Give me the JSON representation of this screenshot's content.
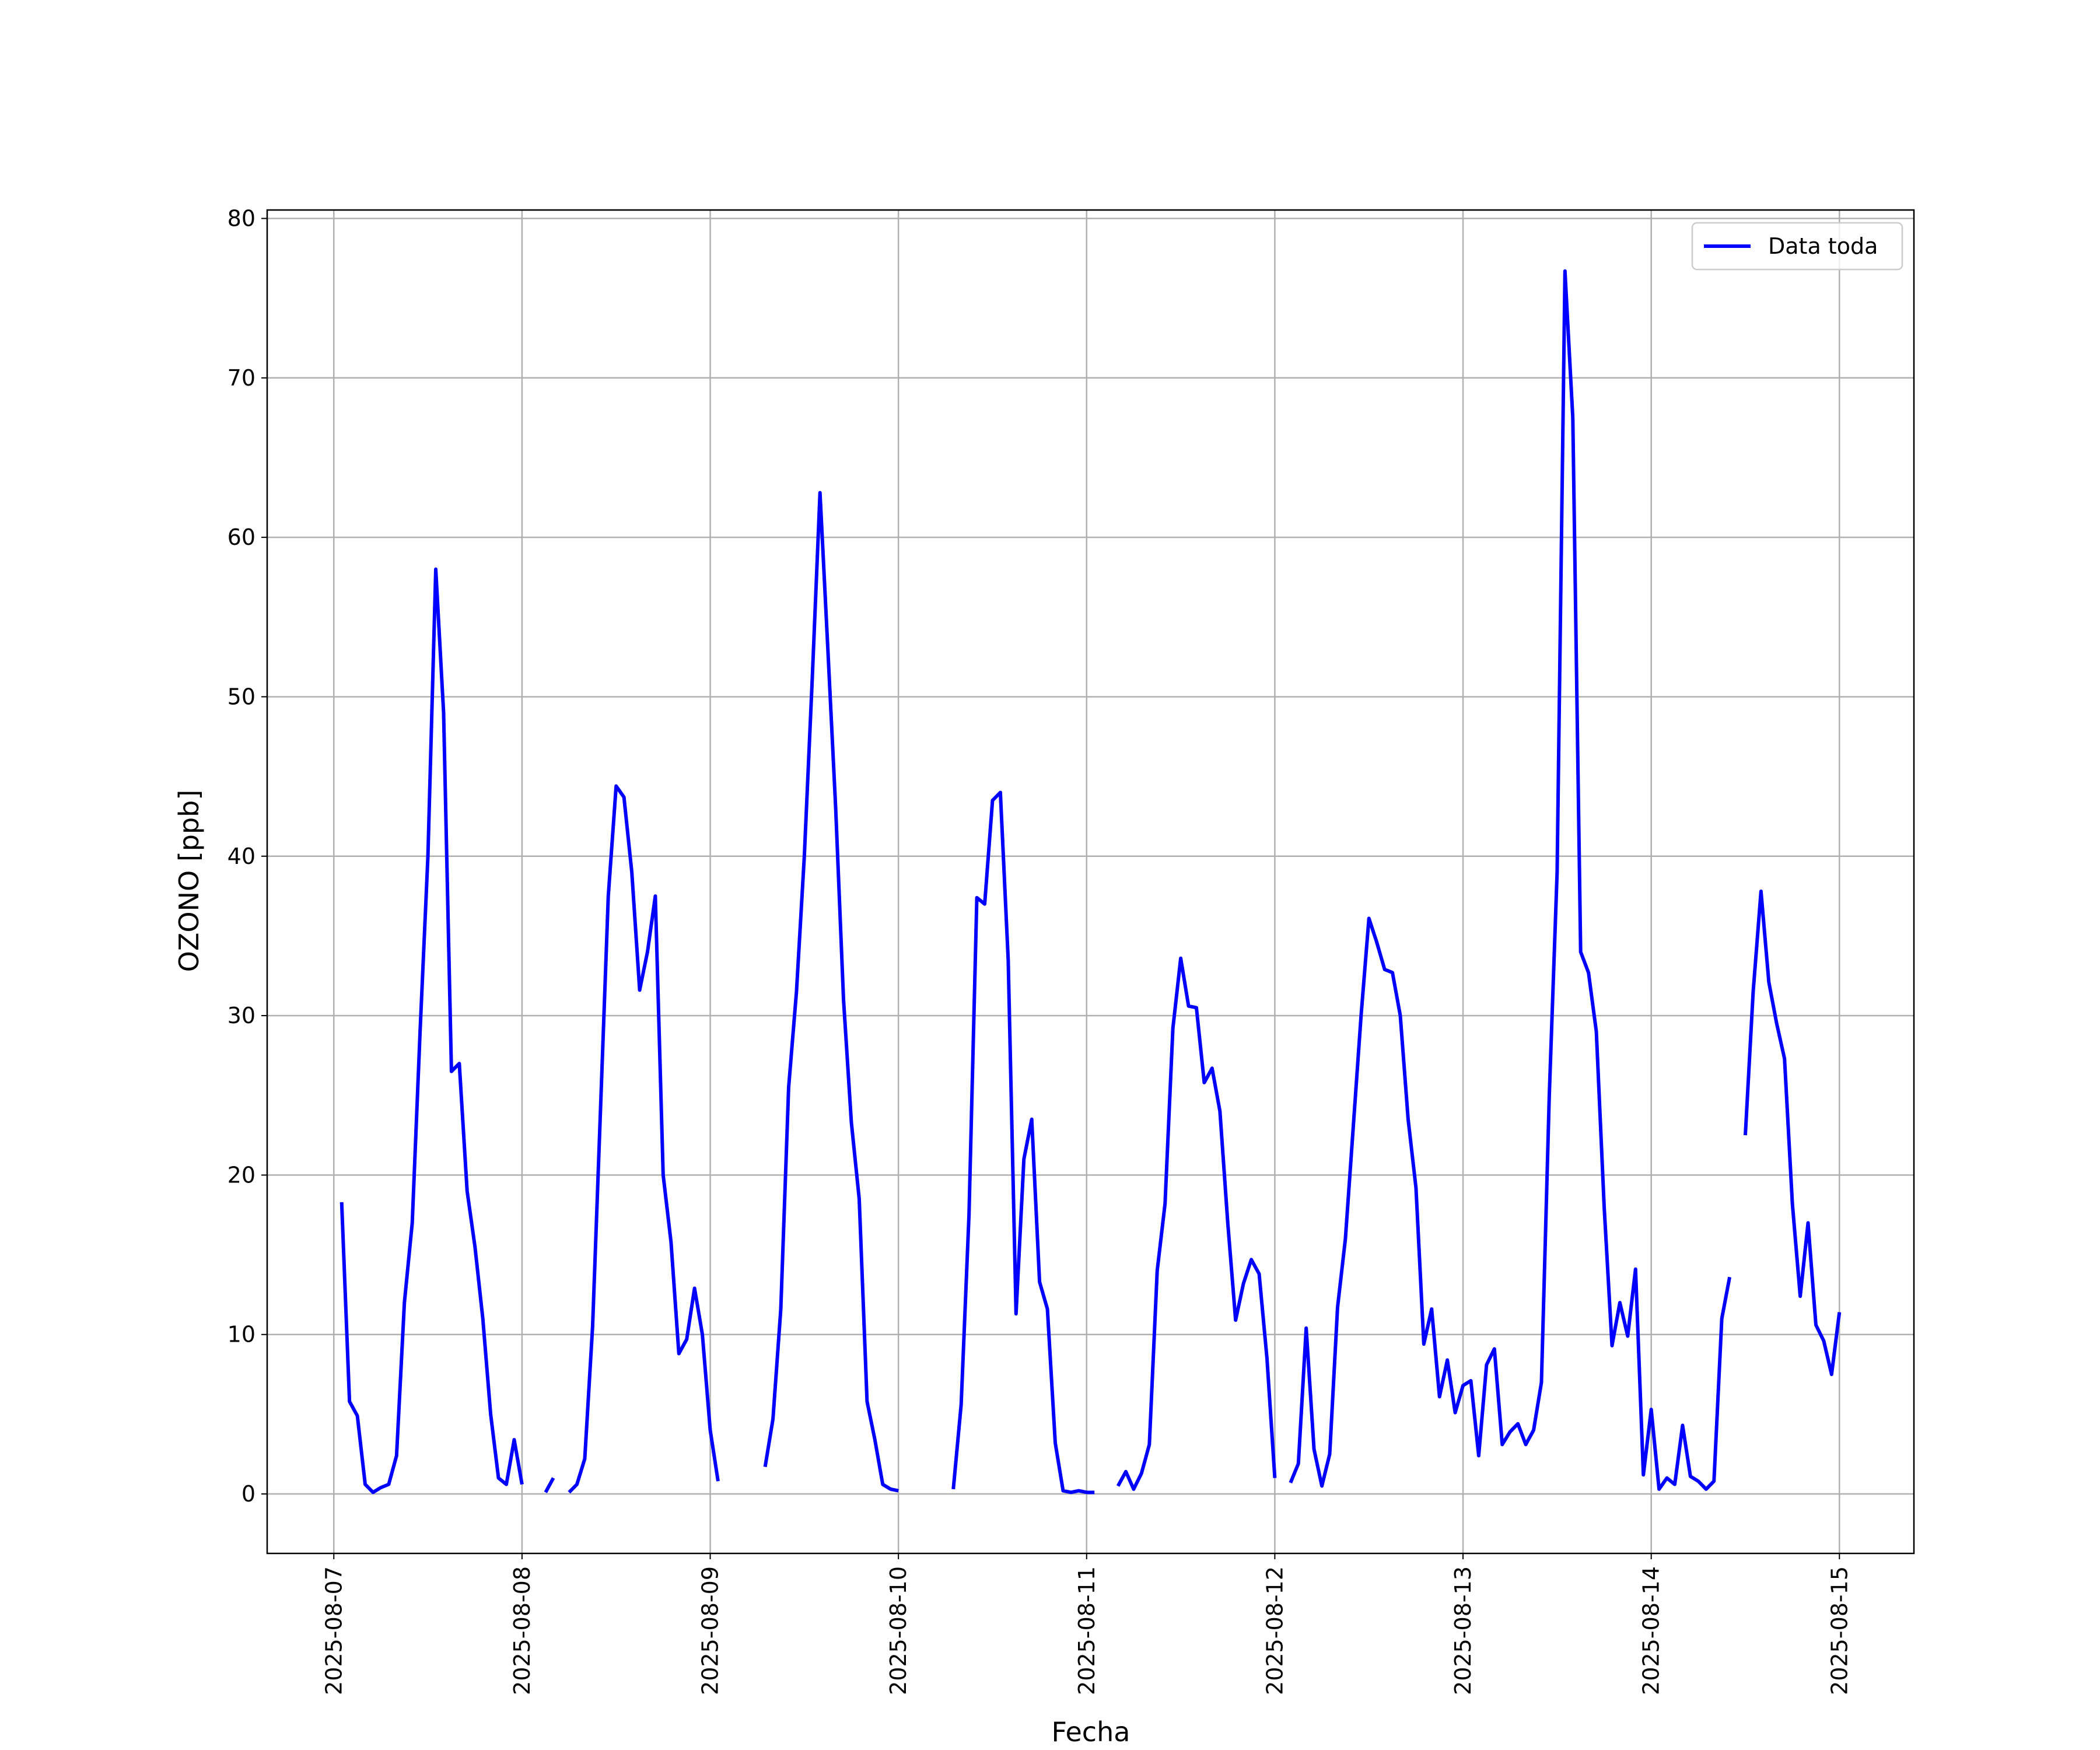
{
  "chart_data": {
    "type": "line",
    "xlabel": "Fecha",
    "ylabel": "OZONO [ppb]",
    "x": [
      "2025-08-07 01:00",
      "2025-08-07 02:00",
      "2025-08-07 03:00",
      "2025-08-07 04:00",
      "2025-08-07 05:00",
      "2025-08-07 06:00",
      "2025-08-07 07:00",
      "2025-08-07 08:00",
      "2025-08-07 09:00",
      "2025-08-07 10:00",
      "2025-08-07 11:00",
      "2025-08-07 12:00",
      "2025-08-07 13:00",
      "2025-08-07 14:00",
      "2025-08-07 15:00",
      "2025-08-07 16:00",
      "2025-08-07 17:00",
      "2025-08-07 18:00",
      "2025-08-07 19:00",
      "2025-08-07 20:00",
      "2025-08-07 21:00",
      "2025-08-07 22:00",
      "2025-08-07 23:00",
      "2025-08-08 00:00",
      "2025-08-08 01:00",
      "2025-08-08 02:00",
      "2025-08-08 03:00",
      "2025-08-08 04:00",
      "2025-08-08 05:00",
      "2025-08-08 06:00",
      "2025-08-08 07:00",
      "2025-08-08 08:00",
      "2025-08-08 09:00",
      "2025-08-08 10:00",
      "2025-08-08 11:00",
      "2025-08-08 12:00",
      "2025-08-08 13:00",
      "2025-08-08 14:00",
      "2025-08-08 15:00",
      "2025-08-08 16:00",
      "2025-08-08 17:00",
      "2025-08-08 18:00",
      "2025-08-08 19:00",
      "2025-08-08 20:00",
      "2025-08-08 21:00",
      "2025-08-08 22:00",
      "2025-08-08 23:00",
      "2025-08-09 00:00",
      "2025-08-09 01:00",
      "2025-08-09 02:00",
      "2025-08-09 03:00",
      "2025-08-09 04:00",
      "2025-08-09 05:00",
      "2025-08-09 06:00",
      "2025-08-09 07:00",
      "2025-08-09 08:00",
      "2025-08-09 09:00",
      "2025-08-09 10:00",
      "2025-08-09 11:00",
      "2025-08-09 12:00",
      "2025-08-09 13:00",
      "2025-08-09 14:00",
      "2025-08-09 15:00",
      "2025-08-09 16:00",
      "2025-08-09 17:00",
      "2025-08-09 18:00",
      "2025-08-09 19:00",
      "2025-08-09 20:00",
      "2025-08-09 21:00",
      "2025-08-09 22:00",
      "2025-08-09 23:00",
      "2025-08-10 00:00",
      "2025-08-10 01:00",
      "2025-08-10 02:00",
      "2025-08-10 03:00",
      "2025-08-10 04:00",
      "2025-08-10 05:00",
      "2025-08-10 06:00",
      "2025-08-10 07:00",
      "2025-08-10 08:00",
      "2025-08-10 09:00",
      "2025-08-10 10:00",
      "2025-08-10 11:00",
      "2025-08-10 12:00",
      "2025-08-10 13:00",
      "2025-08-10 14:00",
      "2025-08-10 15:00",
      "2025-08-10 16:00",
      "2025-08-10 17:00",
      "2025-08-10 18:00",
      "2025-08-10 19:00",
      "2025-08-10 20:00",
      "2025-08-10 21:00",
      "2025-08-10 22:00",
      "2025-08-10 23:00",
      "2025-08-11 00:00",
      "2025-08-11 01:00",
      "2025-08-11 02:00",
      "2025-08-11 03:00",
      "2025-08-11 04:00",
      "2025-08-11 05:00",
      "2025-08-11 06:00",
      "2025-08-11 07:00",
      "2025-08-11 08:00",
      "2025-08-11 09:00",
      "2025-08-11 10:00",
      "2025-08-11 11:00",
      "2025-08-11 12:00",
      "2025-08-11 13:00",
      "2025-08-11 14:00",
      "2025-08-11 15:00",
      "2025-08-11 16:00",
      "2025-08-11 17:00",
      "2025-08-11 18:00",
      "2025-08-11 19:00",
      "2025-08-11 20:00",
      "2025-08-11 21:00",
      "2025-08-11 22:00",
      "2025-08-11 23:00",
      "2025-08-12 00:00",
      "2025-08-12 01:00",
      "2025-08-12 02:00",
      "2025-08-12 03:00",
      "2025-08-12 04:00",
      "2025-08-12 05:00",
      "2025-08-12 06:00",
      "2025-08-12 07:00",
      "2025-08-12 08:00",
      "2025-08-12 09:00",
      "2025-08-12 10:00",
      "2025-08-12 11:00",
      "2025-08-12 12:00",
      "2025-08-12 13:00",
      "2025-08-12 14:00",
      "2025-08-12 15:00",
      "2025-08-12 16:00",
      "2025-08-12 17:00",
      "2025-08-12 18:00",
      "2025-08-12 19:00",
      "2025-08-12 20:00",
      "2025-08-12 21:00",
      "2025-08-12 22:00",
      "2025-08-12 23:00",
      "2025-08-13 00:00",
      "2025-08-13 01:00",
      "2025-08-13 02:00",
      "2025-08-13 03:00",
      "2025-08-13 04:00",
      "2025-08-13 05:00",
      "2025-08-13 06:00",
      "2025-08-13 07:00",
      "2025-08-13 08:00",
      "2025-08-13 09:00",
      "2025-08-13 10:00",
      "2025-08-13 11:00",
      "2025-08-13 12:00",
      "2025-08-13 13:00",
      "2025-08-13 14:00",
      "2025-08-13 15:00",
      "2025-08-13 16:00",
      "2025-08-13 17:00",
      "2025-08-13 18:00",
      "2025-08-13 19:00",
      "2025-08-13 20:00",
      "2025-08-13 21:00",
      "2025-08-13 22:00",
      "2025-08-13 23:00",
      "2025-08-14 00:00",
      "2025-08-14 01:00",
      "2025-08-14 02:00",
      "2025-08-14 03:00",
      "2025-08-14 04:00",
      "2025-08-14 05:00",
      "2025-08-14 06:00",
      "2025-08-14 07:00",
      "2025-08-14 08:00",
      "2025-08-14 09:00",
      "2025-08-14 10:00",
      "2025-08-14 11:00",
      "2025-08-14 12:00",
      "2025-08-14 13:00",
      "2025-08-14 14:00",
      "2025-08-14 15:00",
      "2025-08-14 16:00",
      "2025-08-14 17:00",
      "2025-08-14 18:00",
      "2025-08-14 19:00",
      "2025-08-14 20:00",
      "2025-08-14 21:00",
      "2025-08-14 22:00",
      "2025-08-14 23:00",
      "2025-08-15 00:00"
    ],
    "series": [
      {
        "name": "Data toda",
        "color": "#0000ff",
        "values": [
          18.3,
          5.8,
          4.9,
          0.6,
          0.1,
          0.4,
          0.6,
          2.4,
          12,
          17,
          29,
          40,
          58,
          49,
          26.5,
          27,
          19,
          15.5,
          11,
          5,
          1,
          0.6,
          3.4,
          0.6,
          null,
          null,
          0.1,
          1.0,
          null,
          0.1,
          0.6,
          2.2,
          10.5,
          24,
          37.5,
          44.4,
          43.7,
          39,
          31.6,
          34,
          37.5,
          20,
          15.8,
          8.8,
          9.7,
          12.9,
          10,
          4,
          0.8,
          null,
          null,
          null,
          null,
          null,
          1.7,
          4.7,
          11.6,
          25.5,
          31.5,
          40,
          51,
          62.8,
          53,
          43,
          31,
          23.3,
          18.5,
          5.8,
          3.4,
          0.6,
          0.3,
          0.2,
          null,
          null,
          null,
          null,
          null,
          null,
          0.3,
          5.6,
          17.5,
          37.4,
          37,
          43.5,
          44,
          33.5,
          11.3,
          21,
          23.5,
          13.3,
          11.6,
          3.2,
          0.2,
          0.1,
          0.2,
          0.1,
          0.1,
          null,
          null,
          0.5,
          1.4,
          0.3,
          1.3,
          3.1,
          14,
          18.2,
          29.2,
          33.6,
          30.6,
          30.5,
          25.8,
          26.7,
          24,
          17,
          10.9,
          13.2,
          14.7,
          13.8,
          8.5,
          1.0,
          null,
          0.7,
          1.9,
          10.4,
          2.8,
          0.5,
          2.5,
          11.7,
          16,
          23,
          30,
          36.1,
          34.6,
          32.9,
          32.7,
          30,
          23.5,
          19.2,
          9.4,
          11.6,
          6.1,
          8.4,
          5.1,
          6.8,
          7.1,
          2.4,
          8.1,
          9.1,
          3.1,
          3.9,
          4.4,
          3.1,
          4,
          7,
          25,
          39,
          76.7,
          67.5,
          34,
          32.7,
          29,
          18,
          9.3,
          12,
          9.9,
          14.1,
          1.2,
          5.3,
          0.3,
          1,
          0.6,
          4.3,
          1.1,
          0.8,
          0.3,
          0.8,
          11,
          13.6,
          null,
          22.5,
          31.5,
          37.8,
          32.1,
          29.5,
          27.3,
          18.2,
          12.4,
          17,
          10.6,
          9.6,
          7.5,
          11.4
        ]
      }
    ],
    "xlim": [
      "2025-08-06 15:30",
      "2025-08-15 09:30"
    ],
    "xticks": [
      "2025-08-07",
      "2025-08-08",
      "2025-08-09",
      "2025-08-10",
      "2025-08-11",
      "2025-08-12",
      "2025-08-13",
      "2025-08-14",
      "2025-08-15"
    ],
    "ylim": [
      -3.73,
      80.53
    ],
    "yticks": [
      0,
      10,
      20,
      30,
      40,
      50,
      60,
      70,
      80
    ],
    "grid": true,
    "legend": "upper right"
  }
}
